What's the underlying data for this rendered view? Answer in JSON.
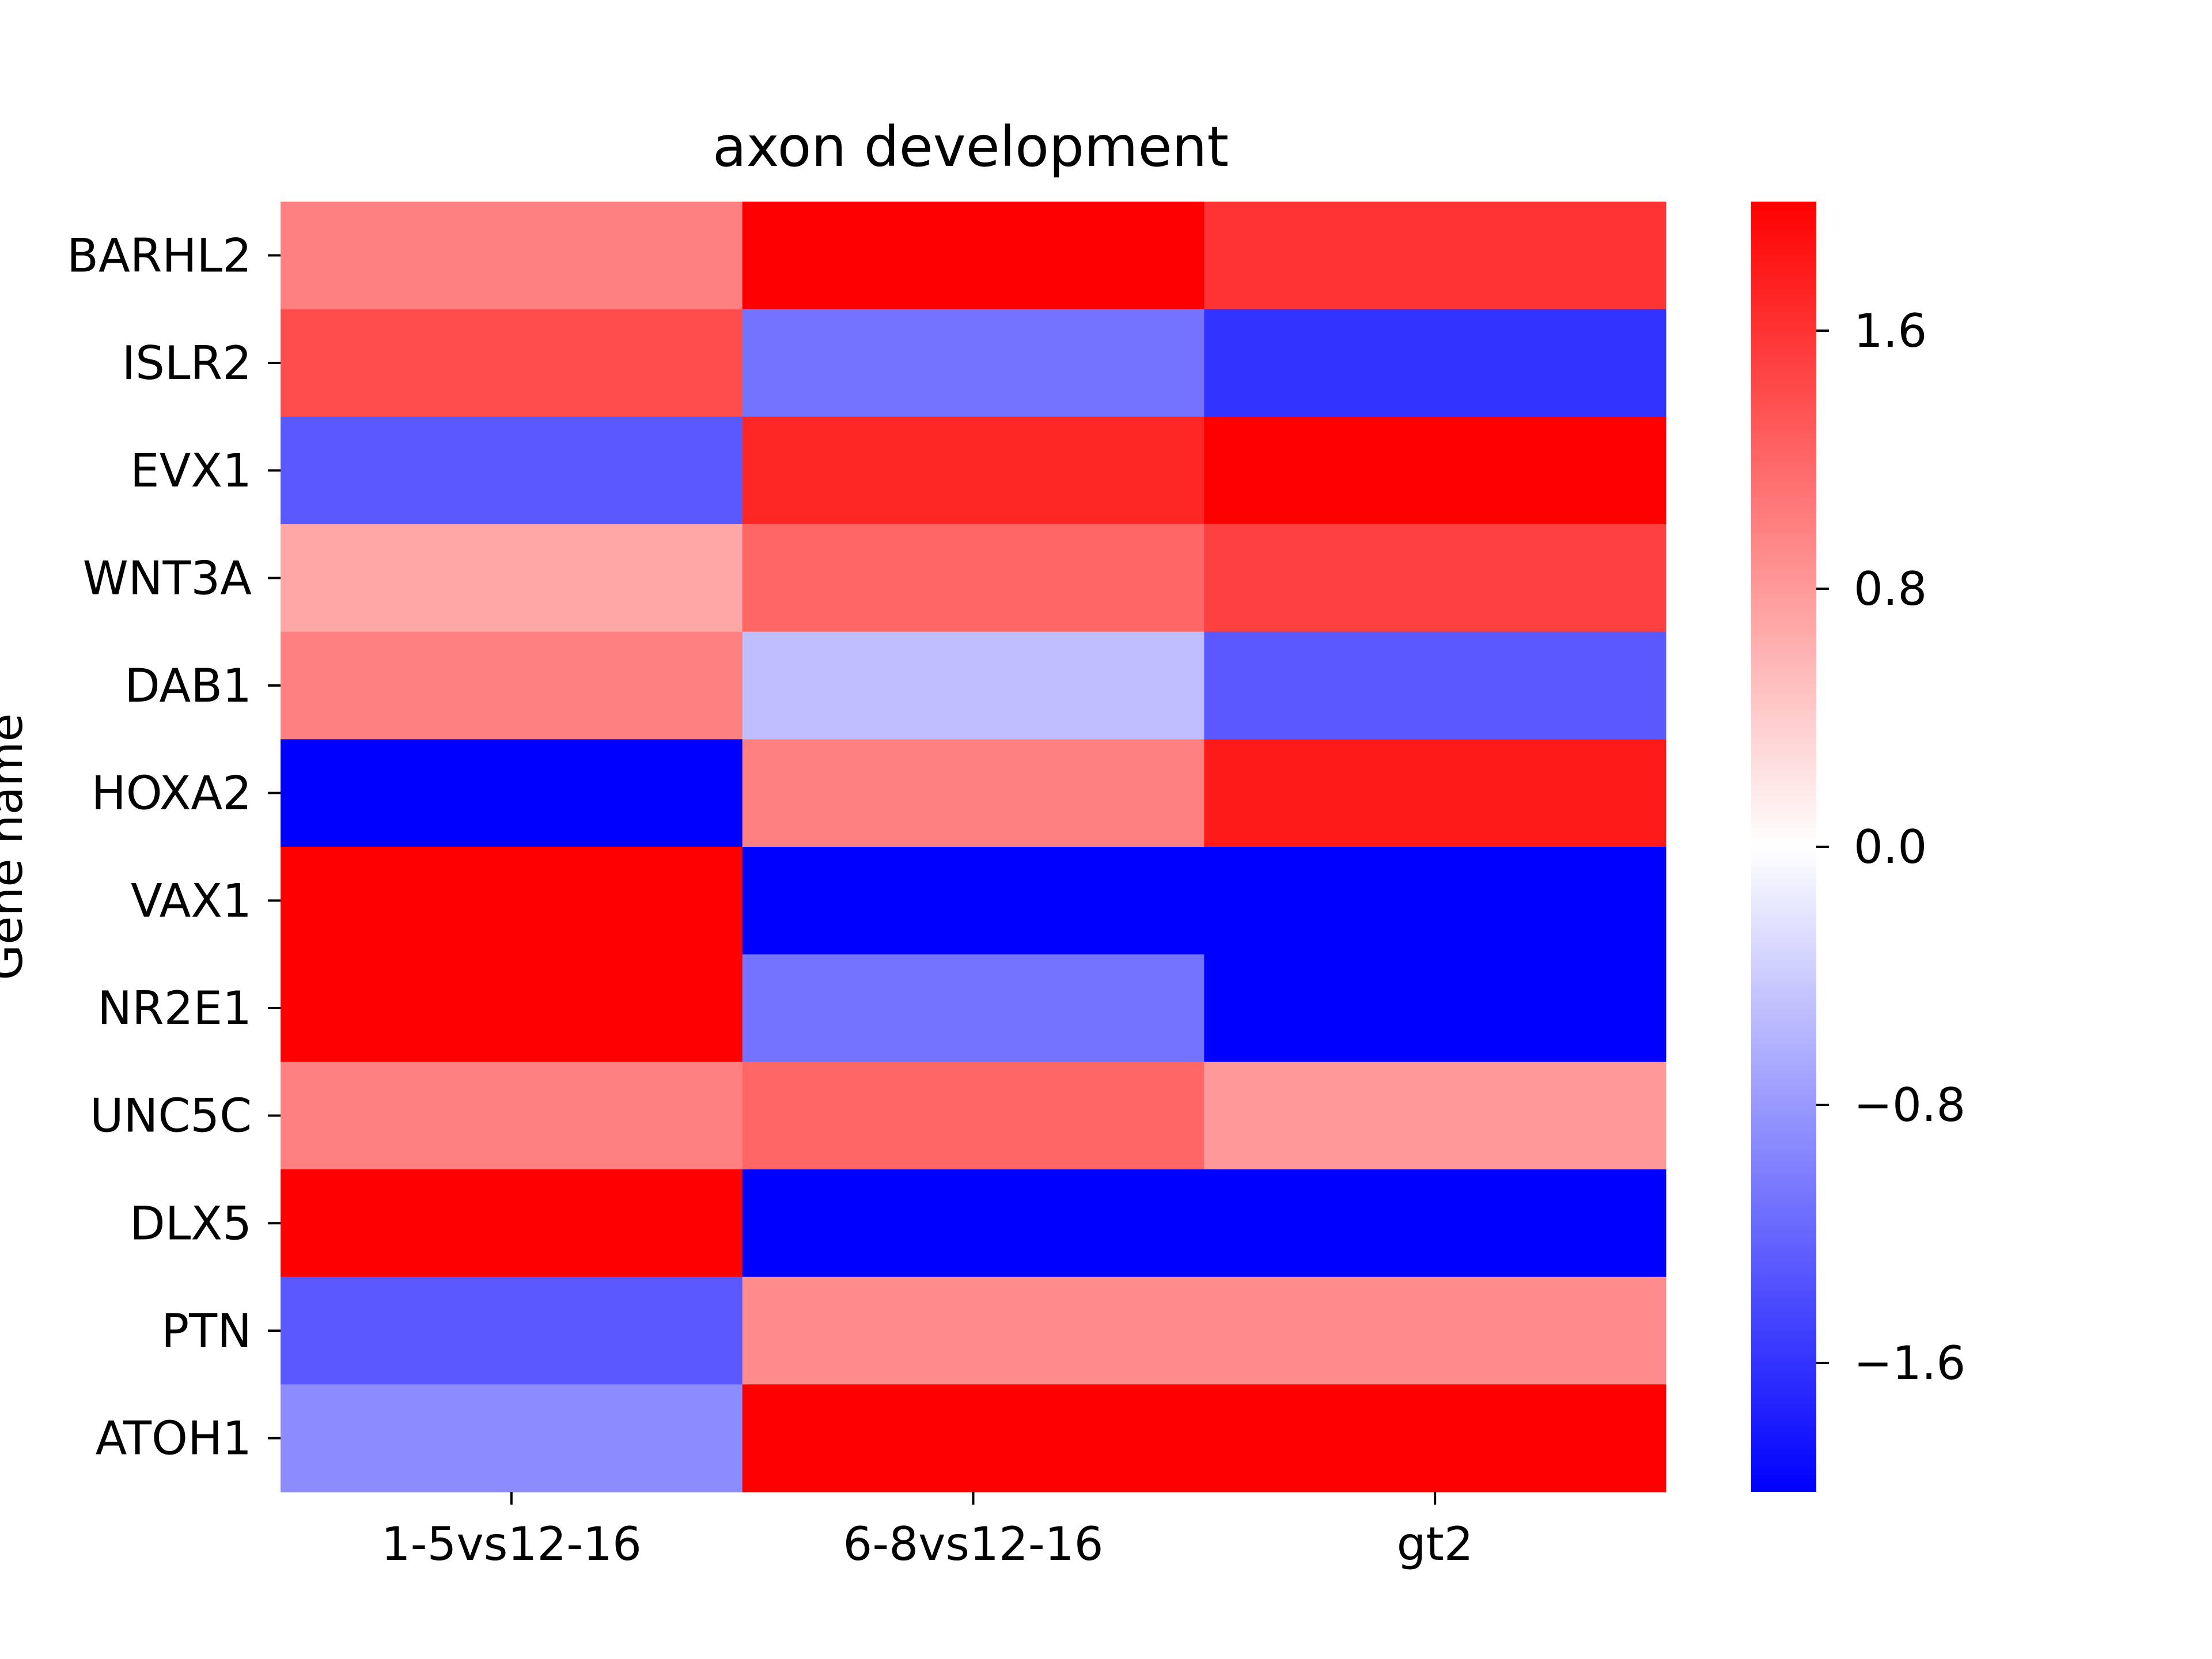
{
  "chart_data": {
    "type": "heatmap",
    "title": "axon development",
    "xlabel": "",
    "ylabel": "Gene name",
    "x_categories": [
      "1-5vs12-16",
      "6-8vs12-16",
      "gt2"
    ],
    "y_categories": [
      "BARHL2",
      "ISLR2",
      "EVX1",
      "WNT3A",
      "DAB1",
      "HOXA2",
      "VAX1",
      "NR2E1",
      "UNC5C",
      "DLX5",
      "PTN",
      "ATOH1"
    ],
    "values": [
      [
        1.0,
        2.0,
        1.6
      ],
      [
        1.4,
        -1.1,
        -1.6
      ],
      [
        -1.3,
        1.7,
        2.0
      ],
      [
        0.7,
        1.2,
        1.5
      ],
      [
        1.0,
        -0.5,
        -1.3
      ],
      [
        -2.0,
        1.0,
        1.8
      ],
      [
        2.0,
        -2.0,
        -2.0
      ],
      [
        2.0,
        -1.1,
        -2.0
      ],
      [
        1.0,
        1.2,
        0.8
      ],
      [
        2.0,
        -2.0,
        -2.0
      ],
      [
        -1.3,
        0.9,
        0.9
      ],
      [
        -0.9,
        2.0,
        2.0
      ]
    ],
    "colorscale": {
      "min": -2.0,
      "max": 2.0,
      "colors": [
        "#0000ff",
        "#ffffff",
        "#ff0000"
      ],
      "ticks": [
        1.6,
        0.8,
        0.0,
        -0.8,
        -1.6
      ],
      "tick_labels": [
        "1.6",
        "0.8",
        "0.0",
        "−0.8",
        "−1.6"
      ]
    },
    "legend_position": "right",
    "grid": false
  }
}
